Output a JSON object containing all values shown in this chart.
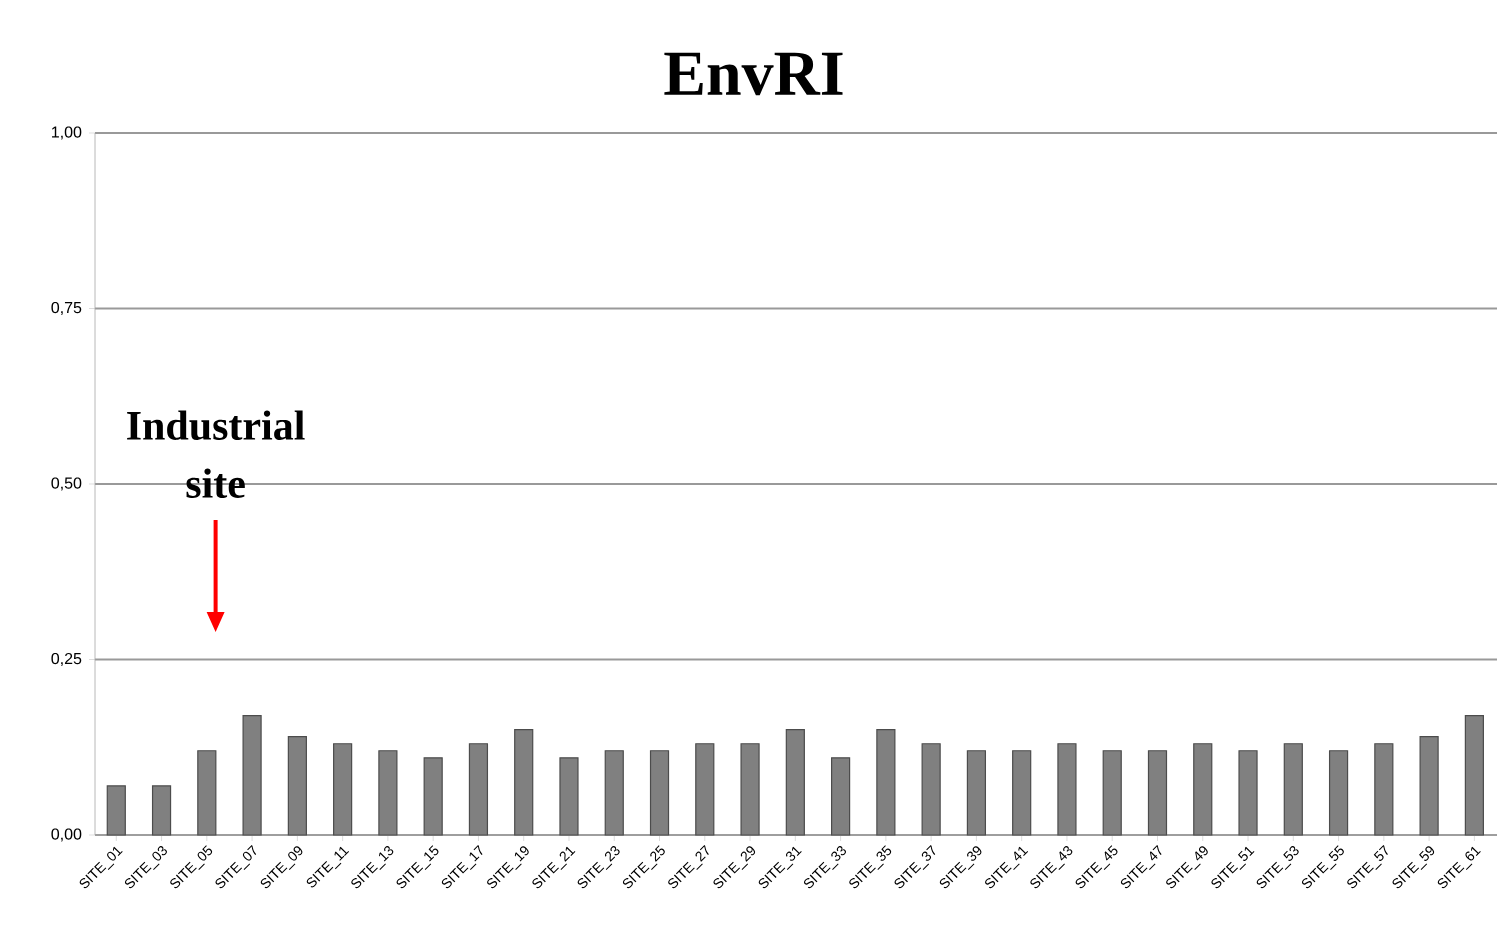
{
  "chart_data": {
    "type": "bar",
    "title": "EnvRI",
    "categories": [
      "SITE_01",
      "SITE_03",
      "SITE_05",
      "SITE_07",
      "SITE_09",
      "SITE_11",
      "SITE_13",
      "SITE_15",
      "SITE_17",
      "SITE_19",
      "SITE_21",
      "SITE_23",
      "SITE_25",
      "SITE_27",
      "SITE_29",
      "SITE_31",
      "SITE_33",
      "SITE_35",
      "SITE_37",
      "SITE_39",
      "SITE_41",
      "SITE_43",
      "SITE_45",
      "SITE_47",
      "SITE_49",
      "SITE_51",
      "SITE_53",
      "SITE_55",
      "SITE_57",
      "SITE_59",
      "SITE_61"
    ],
    "values": [
      0.07,
      0.07,
      0.12,
      0.17,
      0.14,
      0.13,
      0.12,
      0.11,
      0.13,
      0.15,
      0.11,
      0.12,
      0.12,
      0.13,
      0.13,
      0.15,
      0.11,
      0.15,
      0.13,
      0.12,
      0.12,
      0.13,
      0.12,
      0.12,
      0.13,
      0.12,
      0.13,
      0.12,
      0.13,
      0.14,
      0.17
    ],
    "color": "#808080",
    "ylim": [
      0,
      1
    ],
    "yticks": [
      {
        "value": 0,
        "label": "0,00"
      },
      {
        "value": 0.25,
        "label": "0,25"
      },
      {
        "value": 0.5,
        "label": "0,50"
      },
      {
        "value": 0.75,
        "label": "0,75"
      },
      {
        "value": 1,
        "label": "1,00"
      }
    ],
    "grid": "y",
    "annotations": [
      "Industrial site"
    ]
  }
}
